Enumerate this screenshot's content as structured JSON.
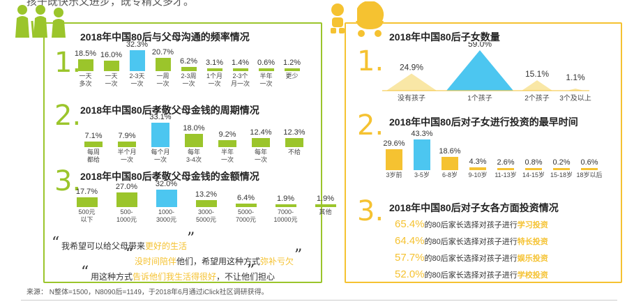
{
  "header_cut_text": "孩子既快乐又进步，既专精又多才。",
  "colors": {
    "green": "#9bc52b",
    "blue": "#4cc6f0",
    "yellow": "#f5c231"
  },
  "left": {
    "numbers": [
      "1.",
      "2.",
      "3."
    ],
    "quote1": {
      "pre": "我希望可以给父母带来",
      "hl": "更好的生活"
    },
    "quote2": {
      "hl": "没时间陪伴",
      "mid": "他们，希望用这种方式",
      "hl2": "弥补亏欠"
    },
    "quote3": {
      "pre": "用这种方式",
      "hl": "告诉他们我生活得很好",
      "post": "，不让他们担心"
    }
  },
  "right": {
    "numbers": [
      "1.",
      "2.",
      "3."
    ],
    "investment_suffix": "的80后家长选择对孩子进行"
  },
  "source": "来源： N整体=1500，N8090后=1149，于2018年6月通过iClick社区调研获得。",
  "chart_data": [
    {
      "type": "bar",
      "title": "2018年中国80后与父母沟通的频率情况",
      "categories": [
        "一天\n多次",
        "一天\n一次",
        "2-3天\n一次",
        "一周\n一次",
        "2-3周\n一次",
        "1个月\n一次",
        "2-3个\n月一次",
        "半年\n一次",
        "更少"
      ],
      "values": [
        18.5,
        16.0,
        32.3,
        20.7,
        6.2,
        3.1,
        1.4,
        0.6,
        1.2
      ],
      "value_labels": [
        "18.5%",
        "16.0%",
        "32.3%",
        "20.7%",
        "6.2%",
        "3.1%",
        "1.4%",
        "0.6%",
        "1.2%"
      ],
      "highlight_index": 2
    },
    {
      "type": "bar",
      "title": "2018年中国80后孝敬父母金钱的周期情况",
      "categories": [
        "每周\n都给",
        "半个月\n一次",
        "每个月\n一次",
        "每年\n3-4次",
        "半年\n一次",
        "每年\n一次",
        "不给"
      ],
      "values": [
        7.1,
        7.9,
        33.1,
        18.0,
        9.2,
        12.4,
        12.3
      ],
      "value_labels": [
        "7.1%",
        "7.9%",
        "33.1%",
        "18.0%",
        "9.2%",
        "12.4%",
        "12.3%"
      ],
      "highlight_index": 2
    },
    {
      "type": "bar",
      "title": "2018年中国80后孝敬父母金钱的金额情况",
      "categories": [
        "500元\n以下",
        "500-\n1000元",
        "1000-\n3000元",
        "3000-\n5000元",
        "5000-\n7000元",
        "7000-\n10000元",
        "其他"
      ],
      "values": [
        17.7,
        27.0,
        32.0,
        13.2,
        6.4,
        1.9,
        1.9
      ],
      "value_labels": [
        "17.7%",
        "27.0%",
        "32.0%",
        "13.2%",
        "6.4%",
        "1.9%",
        "1.9%"
      ],
      "highlight_index": 2
    },
    {
      "type": "area",
      "title": "2018年中国80后子女数量",
      "categories": [
        "没有孩子",
        "1个孩子",
        "2个孩子",
        "3个及以上"
      ],
      "values": [
        24.9,
        59.0,
        15.1,
        1.1
      ],
      "value_labels": [
        "24.9%",
        "59.0%",
        "15.1%",
        "1.1%"
      ],
      "highlight_index": 1
    },
    {
      "type": "bar",
      "title": "2018年中国80后对子女进行投资的最早时间",
      "categories": [
        "3岁前",
        "3-5岁",
        "6-8岁",
        "9-10岁",
        "11-13岁",
        "14-15岁",
        "15-18岁",
        "18岁以后"
      ],
      "values": [
        29.6,
        43.3,
        18.6,
        4.3,
        2.6,
        0.8,
        0.2,
        0.6
      ],
      "value_labels": [
        "29.6%",
        "43.3%",
        "18.6%",
        "4.3%",
        "2.6%",
        "0.8%",
        "0.2%",
        "0.6%"
      ],
      "highlight_index": 1
    },
    {
      "type": "table",
      "title": "2018年中国80后对子女各方面投资情况",
      "rows": [
        {
          "value": 65.4,
          "label": "65.4%",
          "category": "学习投资"
        },
        {
          "value": 64.4,
          "label": "64.4%",
          "category": "特长投资"
        },
        {
          "value": 57.7,
          "label": "57.7%",
          "category": "娱乐投资"
        },
        {
          "value": 52.0,
          "label": "52.0%",
          "category": "学校投资"
        }
      ]
    }
  ]
}
